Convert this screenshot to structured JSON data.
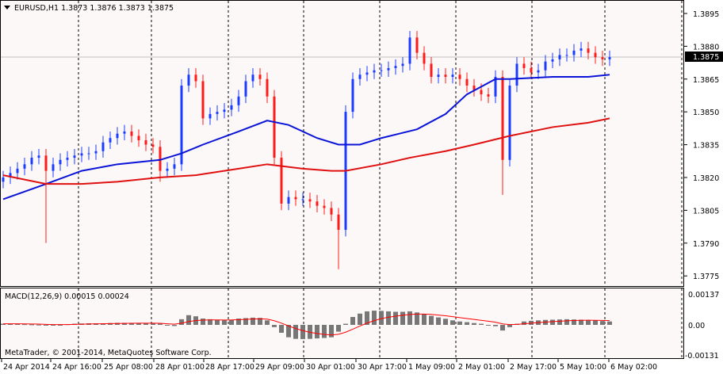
{
  "chart_data": {
    "type": "candlestick",
    "symbol_header": "EURUSD,H1  1.3873 1.3876 1.3873 1.3875",
    "current_price": "1.3875",
    "price_ticks": [
      "1.3895",
      "1.3880",
      "1.3865",
      "1.3850",
      "1.3835",
      "1.3820",
      "1.3805",
      "1.3790",
      "1.3775"
    ],
    "ylim": [
      1.3771,
      1.3901
    ],
    "x_labels": [
      "24 Apr 2014",
      "24 Apr 16:00",
      "25 Apr 08:00",
      "28 Apr 01:00",
      "28 Apr 17:00",
      "29 Apr 09:00",
      "30 Apr 01:00",
      "30 Apr 17:00",
      "1 May 09:00",
      "2 May 01:00",
      "2 May 17:00",
      "5 May 10:00",
      "6 May 02:00"
    ],
    "close": [
      1.382,
      1.3822,
      1.3824,
      1.3826,
      1.3829,
      1.383,
      1.3823,
      1.3826,
      1.3828,
      1.3829,
      1.383,
      1.3831,
      1.3831,
      1.3832,
      1.3836,
      1.3838,
      1.384,
      1.3841,
      1.3839,
      1.3837,
      1.3835,
      1.3834,
      1.3823,
      1.3824,
      1.3826,
      1.3862,
      1.3867,
      1.3864,
      1.3847,
      1.3849,
      1.385,
      1.3851,
      1.3853,
      1.3857,
      1.3864,
      1.3867,
      1.3865,
      1.3857,
      1.3829,
      1.3808,
      1.3811,
      1.381,
      1.381,
      1.3809,
      1.3807,
      1.3806,
      1.3803,
      1.3796,
      1.385,
      1.3865,
      1.3867,
      1.3868,
      1.3869,
      1.3869,
      1.387,
      1.3871,
      1.3872,
      1.3884,
      1.3877,
      1.3872,
      1.3866,
      1.3867,
      1.3866,
      1.3867,
      1.3865,
      1.3862,
      1.386,
      1.3858,
      1.3857,
      1.3866,
      1.3828,
      1.3862,
      1.3872,
      1.387,
      1.3868,
      1.3869,
      1.3873,
      1.3874,
      1.3876,
      1.3876,
      1.3878,
      1.3879,
      1.3877,
      1.3875,
      1.3874,
      1.3875
    ],
    "spike_lows": {
      "6": 1.379,
      "22": 1.3818,
      "47": 1.3778,
      "70": 1.3812
    },
    "ma_fast": {
      "name": "MA blue",
      "color": "#0a14d8",
      "points": [
        [
          0,
          1.381
        ],
        [
          6,
          1.3817
        ],
        [
          11,
          1.3823
        ],
        [
          16,
          1.3826
        ],
        [
          22,
          1.3828
        ],
        [
          25,
          1.3831
        ],
        [
          28,
          1.3835
        ],
        [
          33,
          1.3841
        ],
        [
          37,
          1.3846
        ],
        [
          40,
          1.3844
        ],
        [
          44,
          1.3838
        ],
        [
          47,
          1.3835
        ],
        [
          50,
          1.3835
        ],
        [
          53,
          1.3838
        ],
        [
          58,
          1.3842
        ],
        [
          62,
          1.3849
        ],
        [
          65,
          1.3858
        ],
        [
          69,
          1.3865
        ],
        [
          71,
          1.3865
        ],
        [
          77,
          1.3866
        ],
        [
          82,
          1.3866
        ],
        [
          85,
          1.3867
        ]
      ]
    },
    "ma_slow": {
      "name": "MA red",
      "color": "#e01010",
      "points": [
        [
          0,
          1.3821
        ],
        [
          6,
          1.3817
        ],
        [
          11,
          1.3817
        ],
        [
          16,
          1.3818
        ],
        [
          22,
          1.382
        ],
        [
          27,
          1.3821
        ],
        [
          33,
          1.3824
        ],
        [
          37,
          1.3826
        ],
        [
          42,
          1.3824
        ],
        [
          46,
          1.3823
        ],
        [
          48,
          1.3823
        ],
        [
          53,
          1.3826
        ],
        [
          57,
          1.3829
        ],
        [
          62,
          1.3832
        ],
        [
          66,
          1.3835
        ],
        [
          71,
          1.3839
        ],
        [
          77,
          1.3843
        ],
        [
          82,
          1.3845
        ],
        [
          85,
          1.3847
        ]
      ]
    },
    "macd": {
      "label": "MACD(12,26,9) 0.00015 0.00024",
      "ticks": [
        "0.00137",
        "0.00",
        "-0.00131"
      ],
      "histogram_e4": [
        0.5,
        0.5,
        0.4,
        0.3,
        0.2,
        0.1,
        -0.2,
        -0.2,
        0.0,
        0.3,
        0.5,
        0.6,
        0.7,
        0.7,
        0.7,
        0.8,
        0.9,
        0.9,
        0.9,
        0.8,
        0.8,
        0.7,
        0.5,
        -0.3,
        -0.5,
        2.5,
        4.3,
        3.8,
        2.8,
        2.5,
        2.2,
        2.0,
        2.3,
        2.8,
        3.0,
        3.2,
        3.1,
        2.0,
        -1.0,
        -3.5,
        -5.5,
        -6.2,
        -6.3,
        -6.2,
        -6.0,
        -5.8,
        -5.5,
        -3.0,
        0.5,
        3.5,
        5.0,
        6.0,
        6.3,
        6.2,
        6.0,
        5.8,
        5.8,
        6.0,
        5.5,
        4.8,
        4.0,
        3.3,
        2.7,
        2.0,
        1.5,
        1.2,
        0.8,
        0.5,
        0.0,
        -0.6,
        -2.5,
        -1.0,
        0.5,
        1.5,
        1.8,
        2.0,
        2.2,
        2.3,
        2.4,
        2.5,
        2.4,
        2.3,
        2.2,
        2.0,
        1.7,
        1.5
      ],
      "signal_period": 9
    },
    "copyright": "MetaTrader, © 2001-2014, MetaQuotes Software Corp.",
    "colors": {
      "bull": "#1a3cff",
      "bear": "#ff1a1a",
      "hist": "#777777",
      "signal": "#ff0000",
      "bg": "#fcf8f8"
    }
  }
}
